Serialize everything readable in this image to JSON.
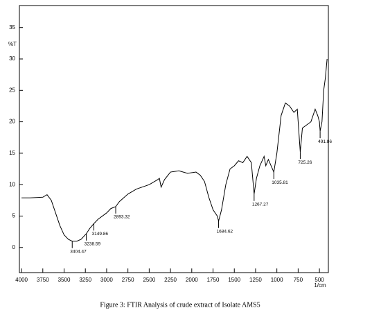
{
  "chart_data": {
    "type": "line",
    "caption": "Figure 3:  FTIR Analysis of crude extract of Isolate AMS5",
    "y_label": "%T",
    "x_label": "1/cm",
    "xlim": [
      4025,
      395
    ],
    "ylim": [
      -4,
      38.5
    ],
    "xticks": [
      4000,
      3750,
      3500,
      3250,
      3000,
      2750,
      2500,
      2250,
      2000,
      1750,
      1500,
      1250,
      1000,
      750,
      500
    ],
    "yticks": [
      0,
      5,
      10,
      15,
      20,
      25,
      30,
      35
    ],
    "x": [
      4000,
      3900,
      3750,
      3700,
      3650,
      3600,
      3550,
      3500,
      3450,
      3404.47,
      3350,
      3300,
      3238.59,
      3200,
      3149.86,
      3100,
      3000,
      2950,
      2893.32,
      2850,
      2750,
      2650,
      2500,
      2400,
      2380,
      2360,
      2320,
      2250,
      2150,
      2050,
      1950,
      1900,
      1850,
      1800,
      1750,
      1700,
      1684.62,
      1650,
      1600,
      1550,
      1500,
      1450,
      1400,
      1350,
      1300,
      1267.27,
      1240,
      1200,
      1150,
      1130,
      1100,
      1035.81,
      1000,
      950,
      900,
      850,
      800,
      760,
      725.26,
      700,
      650,
      600,
      550,
      520,
      500,
      491.86,
      470,
      450,
      430,
      410
    ],
    "series": [
      {
        "name": "spectrum",
        "color": "#000000",
        "values": [
          7.9,
          7.9,
          8.0,
          8.4,
          7.5,
          5.5,
          3.5,
          2.0,
          1.3,
          1.0,
          1.0,
          1.3,
          2.2,
          3.0,
          3.8,
          4.5,
          5.5,
          6.2,
          6.5,
          7.3,
          8.5,
          9.3,
          10.0,
          10.8,
          11.0,
          9.6,
          10.8,
          12.0,
          12.2,
          11.8,
          12.0,
          11.5,
          10.5,
          8.0,
          6.0,
          5.0,
          4.2,
          6.0,
          10.0,
          12.5,
          13.0,
          13.8,
          13.5,
          14.5,
          13.5,
          8.5,
          11.0,
          13.0,
          14.5,
          13.0,
          14.0,
          12.0,
          15.0,
          21.0,
          23.0,
          22.5,
          21.5,
          22.0,
          15.2,
          19.0,
          19.5,
          20.0,
          22.0,
          21.0,
          20.0,
          18.5,
          20.0,
          25.0,
          27.0,
          30.0
        ]
      }
    ],
    "annotations": [
      {
        "x": 3404.47,
        "y": 1.0
      },
      {
        "x": 3238.59,
        "y": 2.2
      },
      {
        "x": 3149.86,
        "y": 3.8
      },
      {
        "x": 2893.32,
        "y": 6.5
      },
      {
        "x": 1684.62,
        "y": 4.2
      },
      {
        "x": 1267.27,
        "y": 8.5
      },
      {
        "x": 1035.81,
        "y": 12.0
      },
      {
        "x": 725.26,
        "y": 15.2
      },
      {
        "x": 491.86,
        "y": 18.5
      }
    ]
  }
}
